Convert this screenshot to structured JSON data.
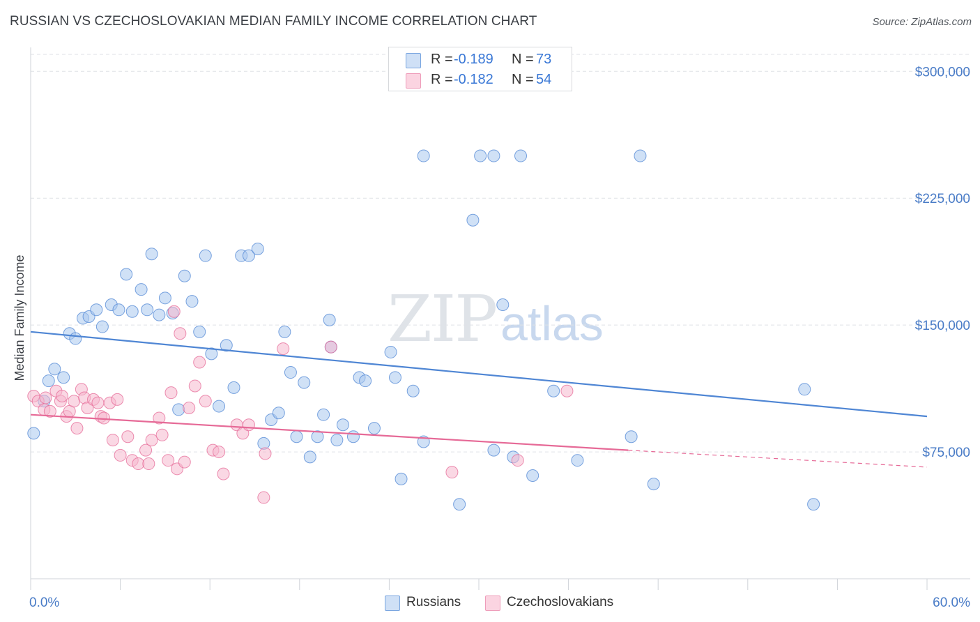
{
  "title": "RUSSIAN VS CZECHOSLOVAKIAN MEDIAN FAMILY INCOME CORRELATION CHART",
  "source": "Source: ZipAtlas.com",
  "watermark": {
    "zip": "ZIP",
    "atlas": "atlas"
  },
  "stats": [
    {
      "r_label": "R = ",
      "r_value": "-0.189",
      "n_label": "N = ",
      "n_value": "73",
      "color": "#a9c8ee"
    },
    {
      "r_label": "R = ",
      "r_value": "-0.182",
      "n_label": "N = ",
      "n_value": "54",
      "color": "#f6b8cd"
    }
  ],
  "legend": [
    {
      "label": "Russians",
      "color": "#a9c8ee"
    },
    {
      "label": "Czechoslovakians",
      "color": "#f6b8cd"
    }
  ],
  "chart_data": {
    "type": "scatter",
    "title": "RUSSIAN VS CZECHOSLOVAKIAN MEDIAN FAMILY INCOME CORRELATION CHART",
    "xlabel": "",
    "ylabel": "Median Family Income",
    "xlim": [
      0,
      60
    ],
    "ylim": [
      0,
      310000
    ],
    "x_tick_labels": [
      "0.0%",
      "60.0%"
    ],
    "y_ticks": [
      75000,
      150000,
      225000,
      300000
    ],
    "y_tick_labels": [
      "$75,000",
      "$150,000",
      "$225,000",
      "$300,000"
    ],
    "grid": true,
    "series": [
      {
        "name": "Russians",
        "color": "#4f86d4",
        "fill": "#a9c8ee",
        "points": [
          [
            0.2,
            86000
          ],
          [
            0.9,
            105000
          ],
          [
            1.2,
            117000
          ],
          [
            1.6,
            124000
          ],
          [
            2.2,
            119000
          ],
          [
            2.6,
            145000
          ],
          [
            3.0,
            142000
          ],
          [
            3.5,
            154000
          ],
          [
            3.9,
            155000
          ],
          [
            4.4,
            159000
          ],
          [
            4.8,
            149000
          ],
          [
            5.4,
            162000
          ],
          [
            5.9,
            159000
          ],
          [
            6.4,
            180000
          ],
          [
            6.8,
            158000
          ],
          [
            7.4,
            171000
          ],
          [
            7.8,
            159000
          ],
          [
            8.1,
            192000
          ],
          [
            8.6,
            156000
          ],
          [
            9.0,
            166000
          ],
          [
            9.5,
            157000
          ],
          [
            9.9,
            100000
          ],
          [
            10.3,
            179000
          ],
          [
            10.8,
            164000
          ],
          [
            11.3,
            146000
          ],
          [
            11.7,
            191000
          ],
          [
            12.1,
            133000
          ],
          [
            12.6,
            102000
          ],
          [
            13.1,
            138000
          ],
          [
            13.6,
            113000
          ],
          [
            14.1,
            191000
          ],
          [
            14.6,
            191000
          ],
          [
            15.2,
            195000
          ],
          [
            15.6,
            80000
          ],
          [
            16.1,
            94000
          ],
          [
            16.6,
            98000
          ],
          [
            17.0,
            146000
          ],
          [
            17.4,
            122000
          ],
          [
            17.8,
            84000
          ],
          [
            18.3,
            116000
          ],
          [
            18.7,
            72000
          ],
          [
            19.2,
            84000
          ],
          [
            19.6,
            97000
          ],
          [
            20.0,
            153000
          ],
          [
            20.1,
            137000
          ],
          [
            20.5,
            82000
          ],
          [
            20.9,
            91000
          ],
          [
            21.6,
            84000
          ],
          [
            22.0,
            119000
          ],
          [
            22.4,
            117000
          ],
          [
            23.0,
            89000
          ],
          [
            24.1,
            134000
          ],
          [
            24.4,
            119000
          ],
          [
            24.8,
            59000
          ],
          [
            25.6,
            111000
          ],
          [
            26.3,
            81000
          ],
          [
            26.3,
            250000
          ],
          [
            28.7,
            44000
          ],
          [
            29.6,
            212000
          ],
          [
            30.1,
            250000
          ],
          [
            31.0,
            76000
          ],
          [
            31.0,
            250000
          ],
          [
            31.6,
            162000
          ],
          [
            32.3,
            72000
          ],
          [
            32.8,
            250000
          ],
          [
            33.6,
            61000
          ],
          [
            35.0,
            111000
          ],
          [
            36.6,
            70000
          ],
          [
            40.2,
            84000
          ],
          [
            40.8,
            250000
          ],
          [
            41.7,
            56000
          ],
          [
            51.8,
            112000
          ],
          [
            52.4,
            44000
          ]
        ]
      },
      {
        "name": "Czechoslovakians",
        "color": "#e66a97",
        "fill": "#f6b8cd",
        "points": [
          [
            0.2,
            108000
          ],
          [
            0.5,
            105000
          ],
          [
            0.9,
            100000
          ],
          [
            1.0,
            107000
          ],
          [
            1.3,
            99000
          ],
          [
            1.7,
            111000
          ],
          [
            2.0,
            105000
          ],
          [
            2.1,
            108000
          ],
          [
            2.4,
            96000
          ],
          [
            2.6,
            99000
          ],
          [
            2.9,
            105000
          ],
          [
            3.1,
            89000
          ],
          [
            3.4,
            112000
          ],
          [
            3.6,
            107000
          ],
          [
            3.8,
            101000
          ],
          [
            4.2,
            106000
          ],
          [
            4.5,
            104000
          ],
          [
            4.7,
            96000
          ],
          [
            4.9,
            95000
          ],
          [
            5.3,
            104000
          ],
          [
            5.5,
            82000
          ],
          [
            5.8,
            106000
          ],
          [
            6.0,
            73000
          ],
          [
            6.5,
            84000
          ],
          [
            6.8,
            70000
          ],
          [
            7.2,
            68000
          ],
          [
            7.7,
            76000
          ],
          [
            7.9,
            68000
          ],
          [
            8.1,
            82000
          ],
          [
            8.6,
            95000
          ],
          [
            8.8,
            85000
          ],
          [
            9.2,
            70000
          ],
          [
            9.4,
            110000
          ],
          [
            9.6,
            158000
          ],
          [
            9.8,
            65000
          ],
          [
            10.0,
            145000
          ],
          [
            10.3,
            69000
          ],
          [
            10.6,
            101000
          ],
          [
            11.0,
            114000
          ],
          [
            11.3,
            128000
          ],
          [
            11.7,
            105000
          ],
          [
            12.2,
            76000
          ],
          [
            12.6,
            75000
          ],
          [
            12.9,
            62000
          ],
          [
            13.8,
            91000
          ],
          [
            14.2,
            86000
          ],
          [
            14.6,
            91000
          ],
          [
            15.6,
            48000
          ],
          [
            15.7,
            74000
          ],
          [
            16.9,
            136000
          ],
          [
            20.1,
            137000
          ],
          [
            28.2,
            63000
          ],
          [
            32.6,
            70000
          ],
          [
            35.9,
            111000
          ]
        ]
      }
    ],
    "trendlines": [
      {
        "name": "Russians",
        "x": [
          0,
          60
        ],
        "y": [
          146000,
          96000
        ],
        "style": "solid"
      },
      {
        "name": "Czechoslovakians",
        "x": [
          0,
          40
        ],
        "y": [
          97000,
          76000
        ],
        "style": "solid"
      },
      {
        "name": "Czechoslovakians",
        "x": [
          40,
          60
        ],
        "y": [
          76000,
          66000
        ],
        "style": "dashed"
      }
    ]
  }
}
